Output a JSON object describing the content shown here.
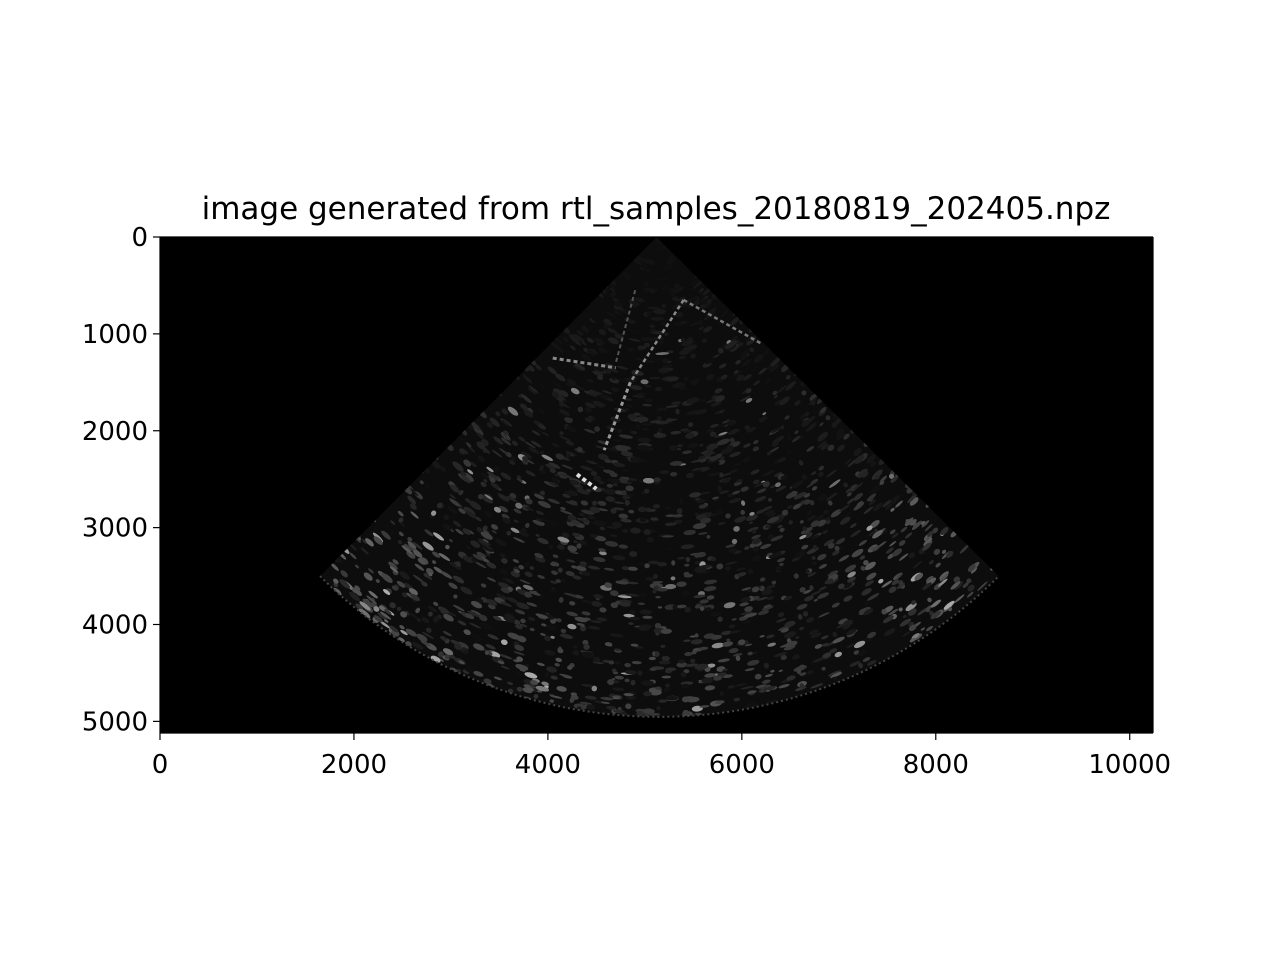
{
  "chart_data": {
    "type": "heatmap",
    "title": "image generated from rtl_samples_20180819_202405.npz",
    "xlabel": "",
    "ylabel": "",
    "xlim": [
      0,
      10240
    ],
    "ylim": [
      5120,
      0
    ],
    "x_ticks": [
      0,
      2000,
      4000,
      6000,
      8000,
      10000
    ],
    "x_tick_labels": [
      "0",
      "2000",
      "4000",
      "6000",
      "8000",
      "10000"
    ],
    "y_ticks": [
      0,
      1000,
      2000,
      3000,
      4000,
      5000
    ],
    "y_tick_labels": [
      "0",
      "1000",
      "2000",
      "3000",
      "4000",
      "5000"
    ],
    "colormap": "gray",
    "grid": false,
    "background_color": "#000000",
    "image_content": "ultrasound sector scan (fan shape) with grayscale speckle",
    "sector": {
      "apex": [
        5120,
        0
      ],
      "left_edge_end": [
        1650,
        3500
      ],
      "right_edge_end": [
        8650,
        3500
      ],
      "arc_bottom_depth": 4950
    }
  }
}
